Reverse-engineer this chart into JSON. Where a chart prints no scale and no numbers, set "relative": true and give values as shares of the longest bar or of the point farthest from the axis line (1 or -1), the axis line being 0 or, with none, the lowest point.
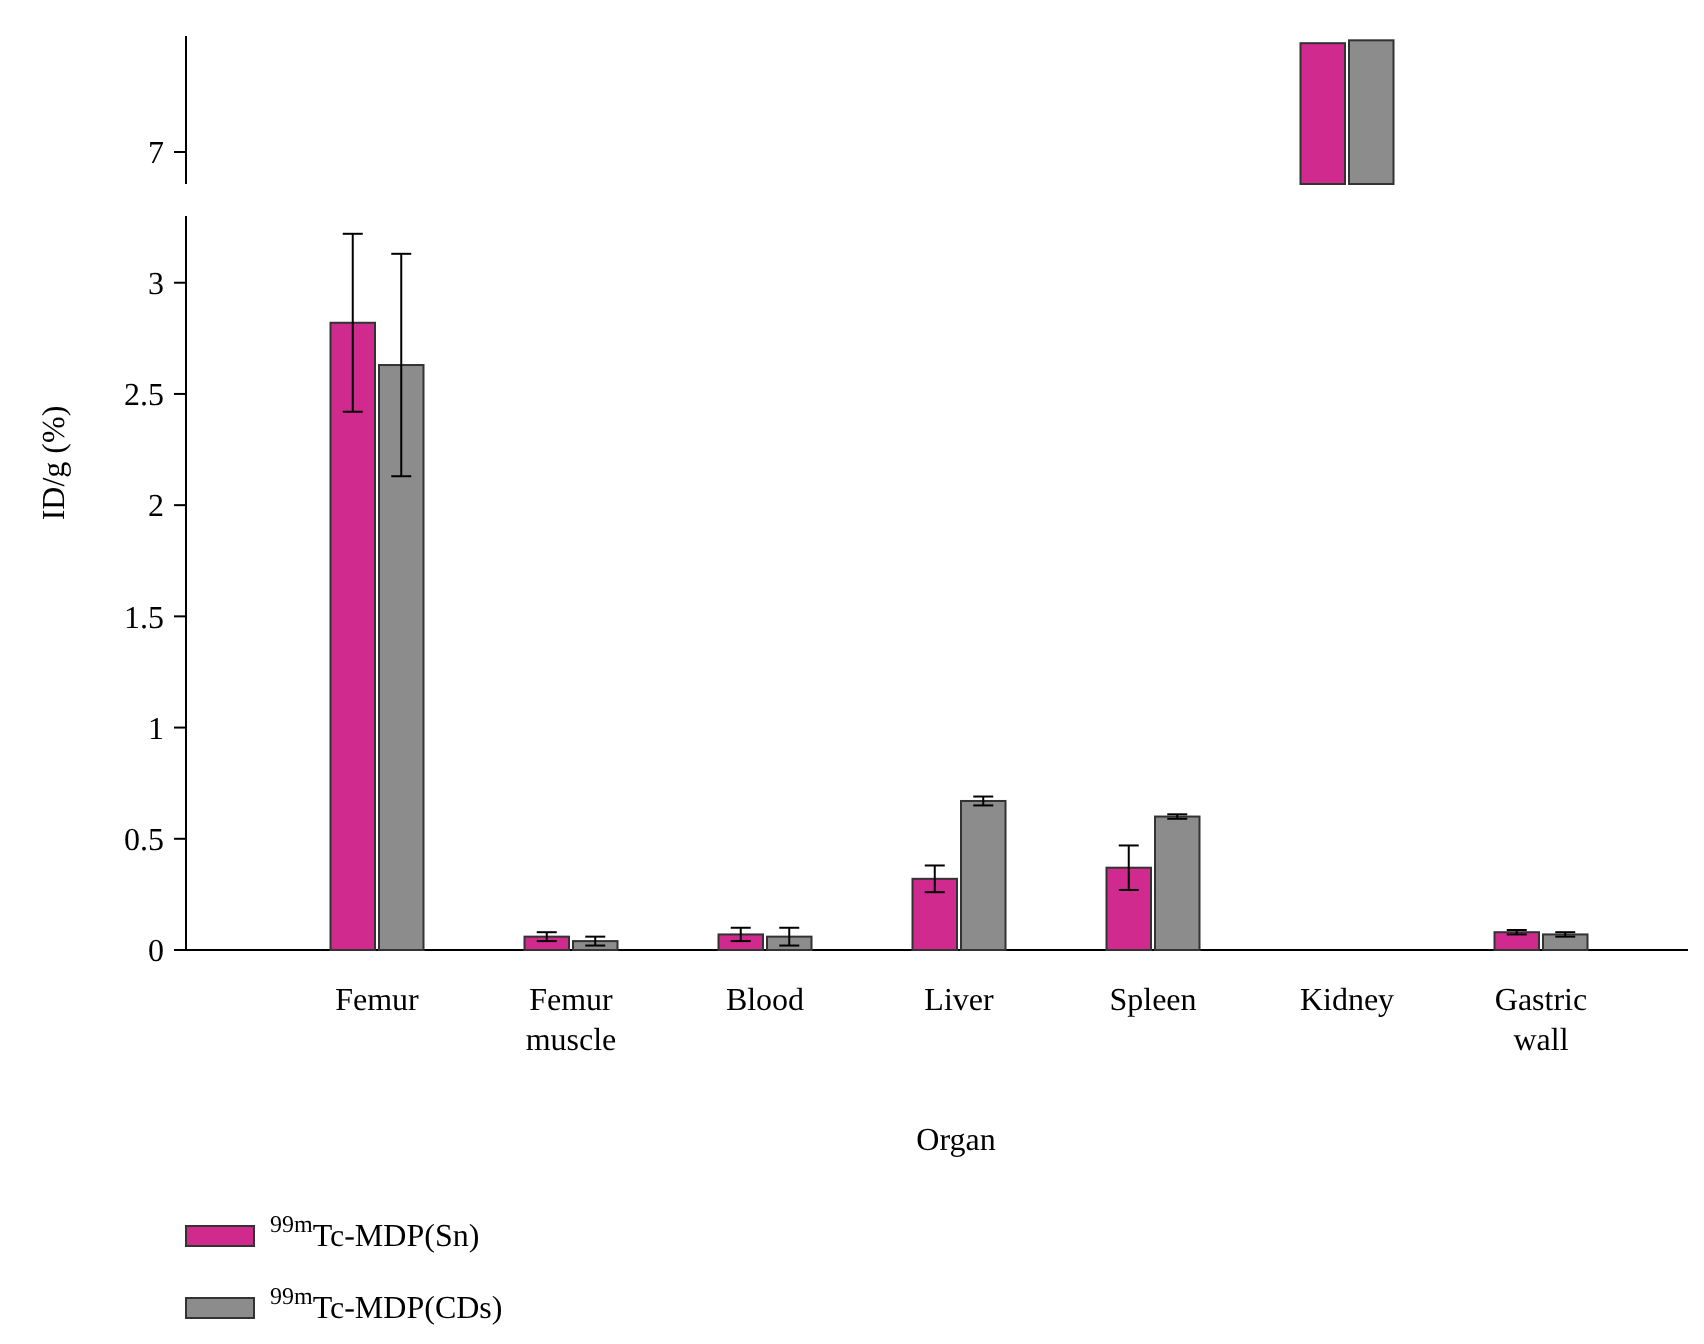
{
  "chart_data": [
    {
      "type": "bar",
      "relative": true,
      "annotations": [
        "7"
      ],
      "categories": [
        null
      ],
      "series": [
        {
          "color": "#d12a8f",
          "values": [
            0.98
          ]
        },
        {
          "color": "#8c8c8c",
          "values": [
            1
          ]
        }
      ],
      "legend": false
    },
    {
      "type": "bar",
      "xlabel": "Organ",
      "ylabel": "ID/g (%)",
      "categories": [
        "Femur",
        "Femur muscle",
        "Blood",
        "Liver",
        "Spleen",
        "Kidney",
        "Gastric wall"
      ],
      "series": [
        {
          "name": "$^{99m}$Tc-MDP(Sn)",
          "color": "#d12a8f",
          "values": [
            2.82,
            0.06,
            0.07,
            0.32,
            0.37,
            null,
            0.08
          ],
          "errors": [
            0.4,
            0.02,
            0.03,
            0.06,
            0.1,
            null,
            0.01
          ]
        },
        {
          "name": "$^{99m}$Tc-MDP(CDs)",
          "color": "#8c8c8c",
          "values": [
            2.63,
            0.04,
            0.06,
            0.67,
            0.6,
            null,
            0.07
          ],
          "errors": [
            0.5,
            0.02,
            0.04,
            0.02,
            0.01,
            null,
            0.01
          ]
        }
      ],
      "ylim": [
        0,
        3.3
      ],
      "yticks": [
        0,
        0.5,
        1,
        1.5,
        2,
        2.5,
        3
      ],
      "legend": "bottom left"
    }
  ]
}
